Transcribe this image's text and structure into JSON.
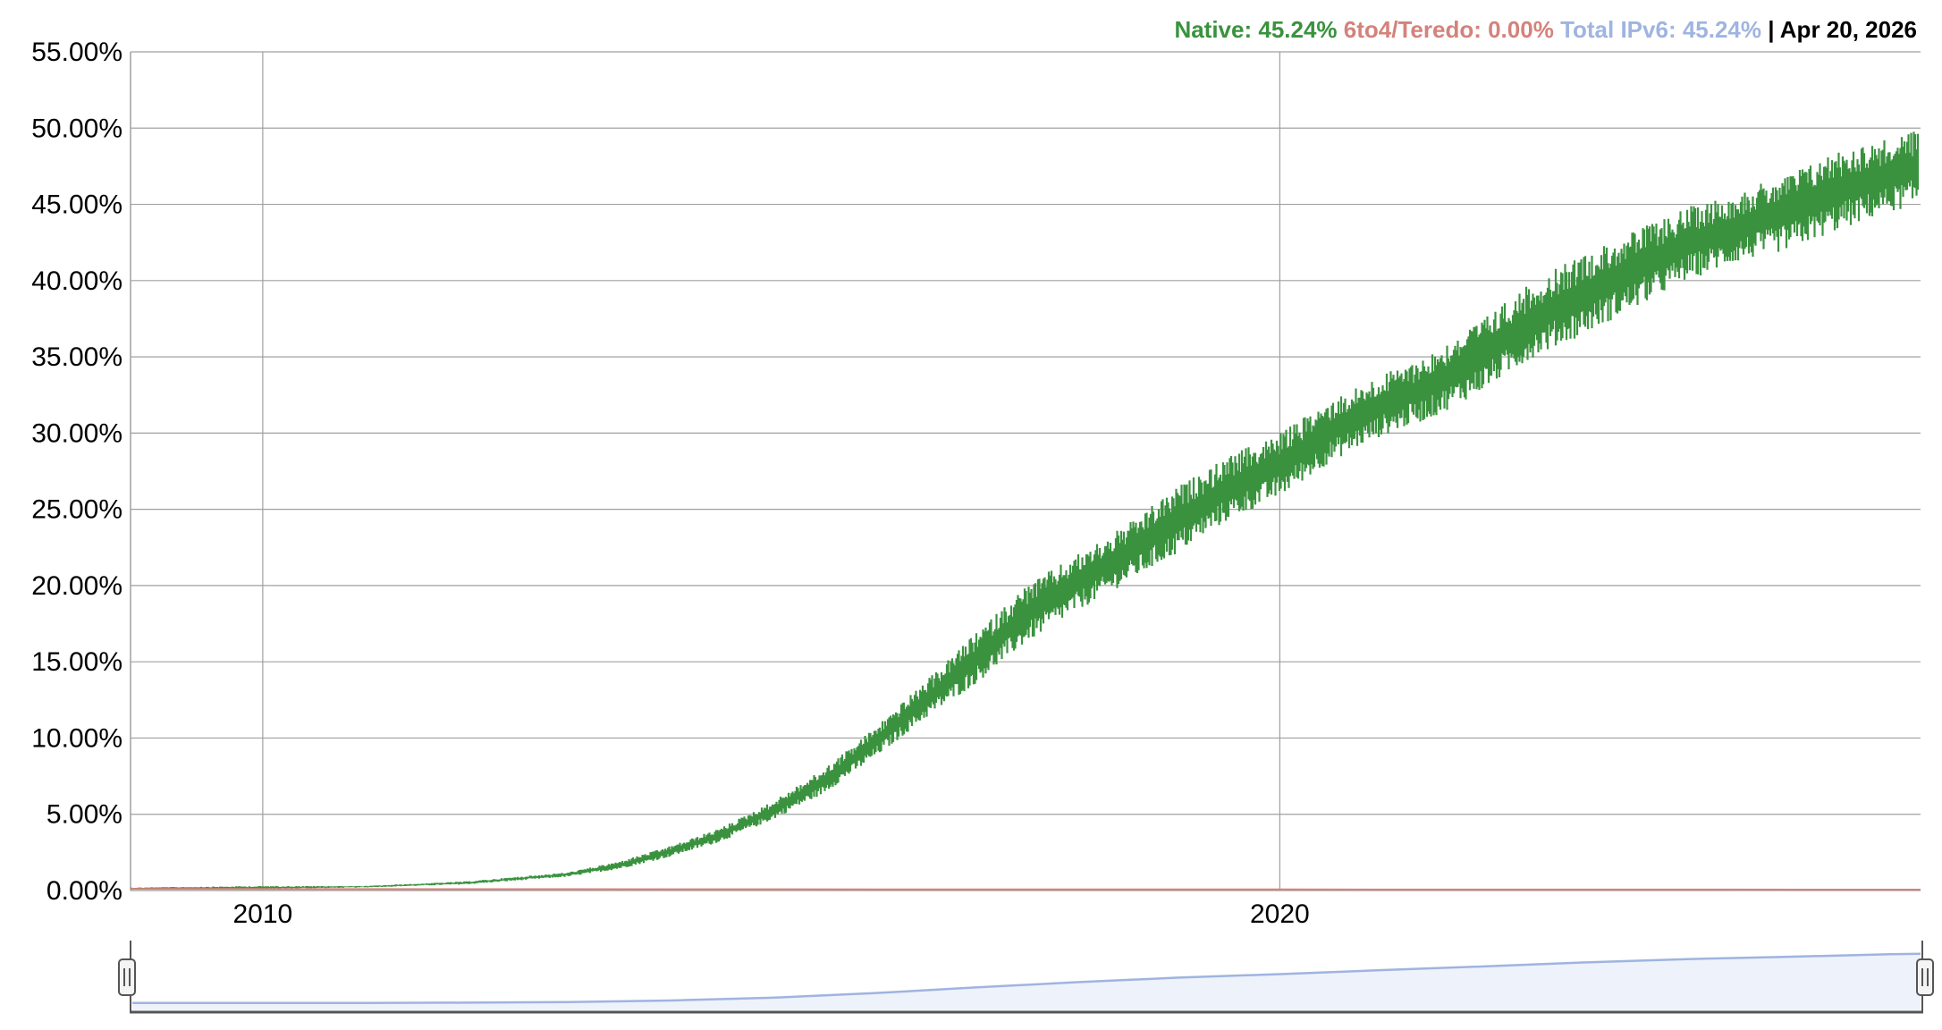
{
  "legend": {
    "native_label": "Native: 45.24%",
    "teredo_label": "6to4/Teredo: 0.00%",
    "total_label": "Total IPv6: 45.24%",
    "separator": " | ",
    "date_label": "Apr 20, 2026"
  },
  "colors": {
    "native": "#3a923e",
    "teredo": "#d4827b",
    "total": "#9fb4e0",
    "date": "#000000",
    "grid": "#a0a0a0",
    "navigator_fill": "#eef2fb",
    "navigator_line": "#9fb4e0"
  },
  "chart_data": {
    "type": "area",
    "title": "",
    "xlabel": "",
    "ylabel": "",
    "ylim": [
      0,
      55
    ],
    "y_ticks": [
      "0.00%",
      "5.00%",
      "10.00%",
      "15.00%",
      "20.00%",
      "25.00%",
      "30.00%",
      "35.00%",
      "40.00%",
      "45.00%",
      "50.00%",
      "55.00%"
    ],
    "y_tick_values": [
      0,
      5,
      10,
      15,
      20,
      25,
      30,
      35,
      40,
      45,
      50,
      55
    ],
    "xlim": [
      2008.7,
      2026.3
    ],
    "x_ticks": [
      "2010",
      "2020"
    ],
    "x_tick_values": [
      2010,
      2020
    ],
    "grid": true,
    "legend_position": "top-right",
    "series": [
      {
        "name": "Native",
        "band": true,
        "x": [
          2008.7,
          2010.0,
          2011.0,
          2012.0,
          2013.0,
          2013.5,
          2014.0,
          2014.5,
          2015.0,
          2015.5,
          2016.0,
          2016.5,
          2017.0,
          2017.5,
          2018.0,
          2018.5,
          2019.0,
          2019.5,
          2020.0,
          2020.5,
          2021.0,
          2021.5,
          2022.0,
          2022.5,
          2023.0,
          2023.5,
          2024.0,
          2024.5,
          2025.0,
          2025.5,
          2026.0,
          2026.3
        ],
        "low": [
          0.1,
          0.1,
          0.2,
          0.4,
          0.9,
          1.4,
          2.2,
          3.2,
          4.6,
          6.3,
          8.6,
          11.2,
          13.5,
          16.2,
          18.3,
          20.2,
          22.1,
          24.3,
          25.8,
          28.1,
          29.8,
          31.0,
          32.8,
          35.0,
          36.5,
          38.2,
          40.0,
          41.2,
          42.0,
          43.3,
          44.5,
          45.0
        ],
        "high": [
          0.2,
          0.3,
          0.3,
          0.6,
          1.2,
          1.9,
          2.9,
          4.1,
          5.8,
          7.9,
          10.6,
          13.6,
          16.8,
          20.0,
          22.0,
          24.0,
          26.5,
          28.5,
          30.0,
          32.2,
          33.8,
          35.3,
          37.5,
          40.0,
          41.8,
          43.3,
          44.8,
          45.8,
          47.0,
          48.6,
          49.3,
          50.0
        ]
      },
      {
        "name": "6to4/Teredo",
        "x": [
          2008.7,
          2012.0,
          2016.0,
          2020.0,
          2026.3
        ],
        "values": [
          0.05,
          0.03,
          0.02,
          0.01,
          0.0
        ]
      }
    ],
    "navigator": {
      "x": [
        2008.7,
        2010.0,
        2011.0,
        2012.0,
        2013.0,
        2014.0,
        2015.0,
        2016.0,
        2017.0,
        2018.0,
        2019.0,
        2020.0,
        2021.0,
        2022.0,
        2023.0,
        2024.0,
        2025.0,
        2026.0,
        2026.3
      ],
      "values": [
        0.2,
        0.2,
        0.3,
        0.5,
        1.1,
        2.6,
        5.2,
        9.6,
        15.1,
        20.2,
        24.6,
        27.9,
        31.8,
        35.3,
        39.2,
        42.4,
        44.6,
        47.0,
        47.5
      ]
    }
  }
}
